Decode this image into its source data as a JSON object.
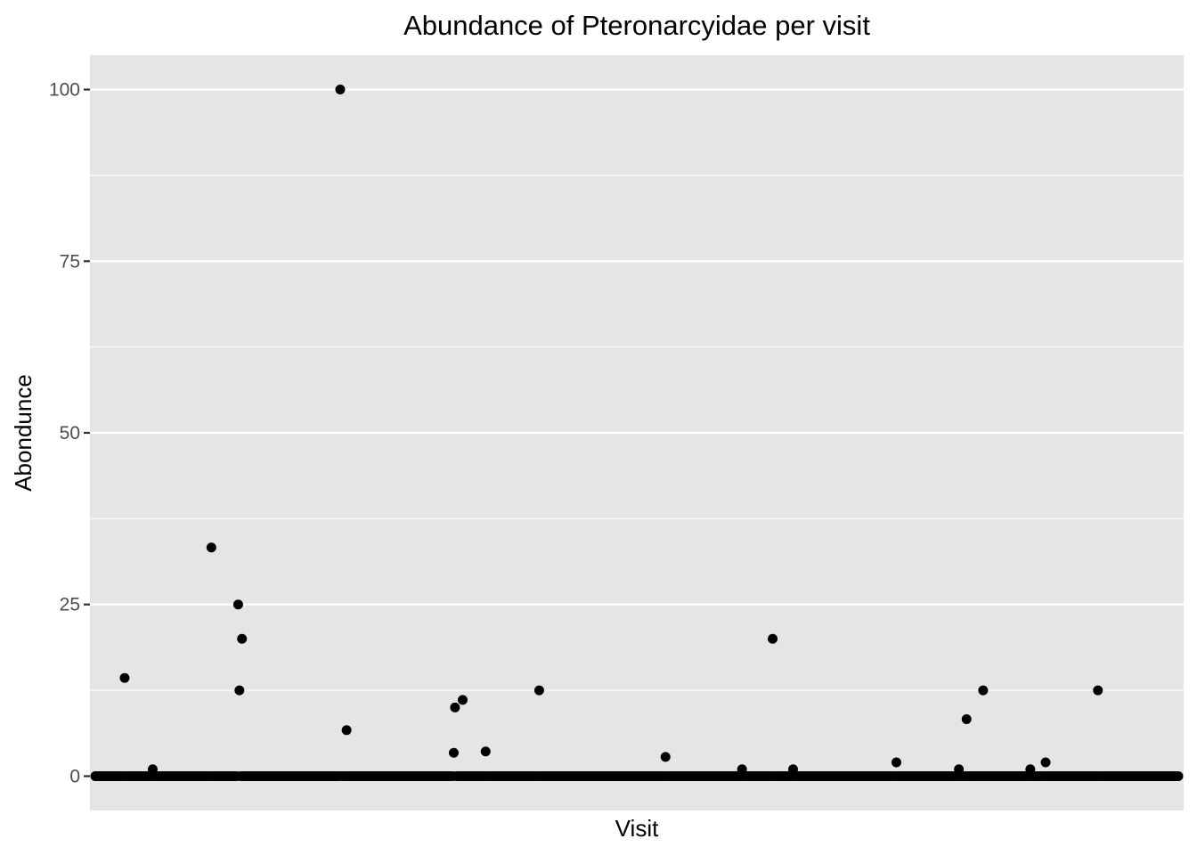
{
  "chart_data": {
    "type": "scatter",
    "title": "Abundance of Pteronarcyidae per visit",
    "xlabel": "Visit",
    "ylabel": "Abondunce",
    "ylim": [
      -5,
      105
    ],
    "yticks": [
      0,
      25,
      50,
      75,
      100
    ],
    "ytick_labels": [
      "0",
      "25",
      "50",
      "75",
      "100"
    ],
    "x_tick_labels": "none",
    "grid": true,
    "colors": {
      "panel": "#e5e5e5",
      "grid": "#ffffff",
      "point": "#000000",
      "tick": "#333333"
    },
    "visit_count": 850,
    "baseline_value": 0,
    "points": [
      {
        "visit": 24,
        "abundance": 14.3
      },
      {
        "visit": 46,
        "abundance": 1
      },
      {
        "visit": 92,
        "abundance": 33.3
      },
      {
        "visit": 113,
        "abundance": 25
      },
      {
        "visit": 114,
        "abundance": 12.5
      },
      {
        "visit": 116,
        "abundance": 20
      },
      {
        "visit": 193,
        "abundance": 100
      },
      {
        "visit": 198,
        "abundance": 6.7
      },
      {
        "visit": 282,
        "abundance": 3.4
      },
      {
        "visit": 283,
        "abundance": 10
      },
      {
        "visit": 289,
        "abundance": 11.1
      },
      {
        "visit": 307,
        "abundance": 3.6
      },
      {
        "visit": 349,
        "abundance": 12.5
      },
      {
        "visit": 448,
        "abundance": 2.8
      },
      {
        "visit": 508,
        "abundance": 1
      },
      {
        "visit": 532,
        "abundance": 20
      },
      {
        "visit": 548,
        "abundance": 1
      },
      {
        "visit": 629,
        "abundance": 2
      },
      {
        "visit": 678,
        "abundance": 1
      },
      {
        "visit": 684,
        "abundance": 8.3
      },
      {
        "visit": 697,
        "abundance": 12.5
      },
      {
        "visit": 734,
        "abundance": 1
      },
      {
        "visit": 746,
        "abundance": 2
      },
      {
        "visit": 787,
        "abundance": 12.5
      }
    ]
  }
}
